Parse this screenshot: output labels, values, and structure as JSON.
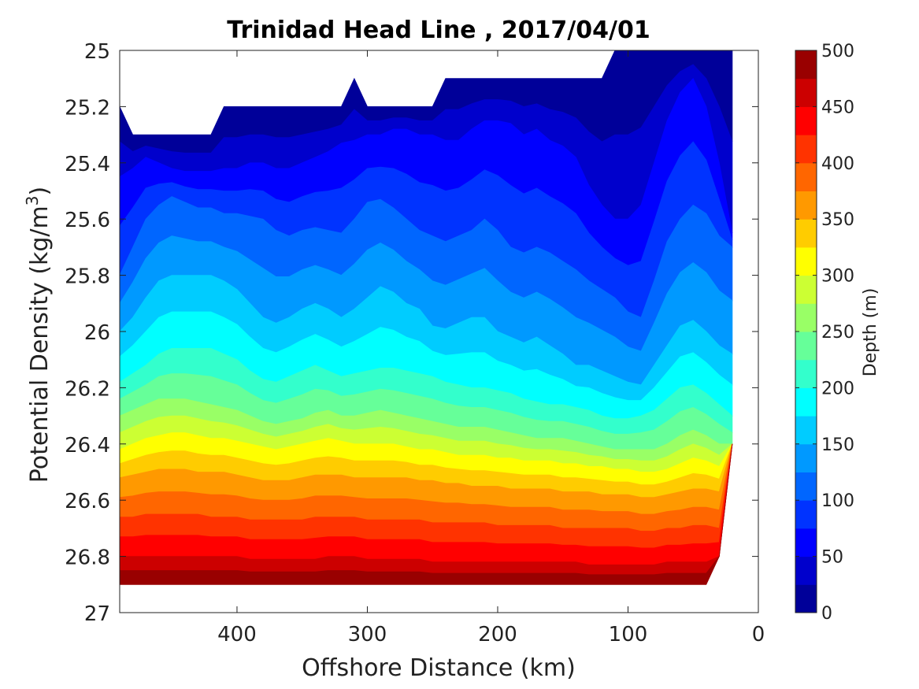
{
  "chart_data": {
    "type": "heatmap",
    "subtype": "filled-contour",
    "title": "Trinidad Head Line , 2017/04/01",
    "xlabel": "Offshore Distance (km)",
    "ylabel": "Potential Density (kg/m",
    "ylabel_superscript": "3",
    "ylabel_suffix": ")",
    "x_reversed": true,
    "y_reversed": true,
    "xlim": [
      490,
      0
    ],
    "ylim": [
      25,
      27
    ],
    "xticks": [
      400,
      300,
      200,
      100,
      0
    ],
    "yticks": [
      25,
      25.2,
      25.4,
      25.6,
      25.8,
      26,
      26.2,
      26.4,
      26.6,
      26.8,
      27
    ],
    "ytick_labels": [
      "25",
      "25.2",
      "25.4",
      "25.6",
      "25.8",
      "26",
      "26.2",
      "26.4",
      "26.6",
      "26.8",
      "27"
    ],
    "xtick_labels": [
      "400",
      "300",
      "200",
      "100",
      "0"
    ],
    "colormap": "jet",
    "colorbar": {
      "label": "Depth (m)",
      "min": 0,
      "max": 500,
      "levels": 20,
      "ticks": [
        "0",
        "50",
        "100",
        "150",
        "200",
        "250",
        "300",
        "350",
        "400",
        "450",
        "500"
      ],
      "tick_values": [
        0,
        50,
        100,
        150,
        200,
        250,
        300,
        350,
        400,
        450,
        500
      ]
    },
    "x": [
      490,
      480,
      470,
      460,
      450,
      440,
      430,
      420,
      410,
      400,
      390,
      380,
      370,
      360,
      350,
      340,
      330,
      320,
      310,
      300,
      290,
      280,
      270,
      260,
      250,
      240,
      230,
      220,
      210,
      200,
      190,
      180,
      170,
      160,
      150,
      140,
      130,
      120,
      110,
      100,
      90,
      80,
      70,
      60,
      50,
      40,
      30,
      20
    ],
    "top_density": [
      25.2,
      25.3,
      25.3,
      25.3,
      25.3,
      25.3,
      25.3,
      25.3,
      25.2,
      25.2,
      25.2,
      25.2,
      25.2,
      25.2,
      25.2,
      25.2,
      25.2,
      25.2,
      25.1,
      25.2,
      25.2,
      25.2,
      25.2,
      25.2,
      25.2,
      25.1,
      25.1,
      25.1,
      25.1,
      25.1,
      25.1,
      25.1,
      25.1,
      25.1,
      25.1,
      25.1,
      25.1,
      25.1,
      25.0,
      25.0,
      25.0,
      25.0,
      25.0,
      25.0,
      25.0,
      25.0,
      25.0,
      25.0
    ],
    "bottom_density": [
      26.9,
      26.9,
      26.9,
      26.9,
      26.9,
      26.9,
      26.9,
      26.9,
      26.9,
      26.9,
      26.9,
      26.9,
      26.9,
      26.9,
      26.9,
      26.9,
      26.9,
      26.9,
      26.9,
      26.9,
      26.9,
      26.9,
      26.9,
      26.9,
      26.9,
      26.9,
      26.9,
      26.9,
      26.9,
      26.9,
      26.9,
      26.9,
      26.9,
      26.9,
      26.9,
      26.9,
      26.9,
      26.9,
      26.9,
      26.9,
      26.9,
      26.9,
      26.9,
      26.9,
      26.9,
      26.9,
      26.8,
      26.4
    ],
    "depth_isolines": {
      "50": [
        25.45,
        25.42,
        25.38,
        25.4,
        25.42,
        25.43,
        25.43,
        25.43,
        25.42,
        25.42,
        25.4,
        25.4,
        25.42,
        25.42,
        25.4,
        25.38,
        25.36,
        25.33,
        25.32,
        25.3,
        25.3,
        25.28,
        25.28,
        25.3,
        25.3,
        25.32,
        25.32,
        25.28,
        25.25,
        25.25,
        25.26,
        25.3,
        25.28,
        25.32,
        25.34,
        25.38,
        25.48,
        25.55,
        25.6,
        25.6,
        25.55,
        25.4,
        25.25,
        25.15,
        25.1,
        25.2,
        25.4,
        25.65
      ],
      "100": [
        25.8,
        25.7,
        25.6,
        25.55,
        25.52,
        25.54,
        25.56,
        25.56,
        25.58,
        25.58,
        25.59,
        25.6,
        25.64,
        25.66,
        25.64,
        25.63,
        25.64,
        25.65,
        25.6,
        25.54,
        25.53,
        25.56,
        25.6,
        25.64,
        25.66,
        25.68,
        25.66,
        25.64,
        25.6,
        25.64,
        25.7,
        25.72,
        25.7,
        25.72,
        25.75,
        25.78,
        25.82,
        25.85,
        25.88,
        25.93,
        25.95,
        25.82,
        25.68,
        25.6,
        25.55,
        25.58,
        25.66,
        25.7
      ],
      "150": [
        26.0,
        25.95,
        25.88,
        25.82,
        25.8,
        25.8,
        25.8,
        25.8,
        25.82,
        25.85,
        25.9,
        25.95,
        25.97,
        25.95,
        25.92,
        25.9,
        25.92,
        25.95,
        25.92,
        25.88,
        25.84,
        25.86,
        25.9,
        25.92,
        25.98,
        25.99,
        25.97,
        25.95,
        25.95,
        26.0,
        26.02,
        26.04,
        26.02,
        26.05,
        26.08,
        26.12,
        26.12,
        26.14,
        26.16,
        26.18,
        26.19,
        26.12,
        26.05,
        25.98,
        25.96,
        26.0,
        26.05,
        26.08
      ],
      "200": [
        26.18,
        26.15,
        26.12,
        26.08,
        26.06,
        26.06,
        26.06,
        26.06,
        26.08,
        26.1,
        26.14,
        26.17,
        26.18,
        26.16,
        26.14,
        26.12,
        26.14,
        26.16,
        26.15,
        26.14,
        26.13,
        26.13,
        26.14,
        26.15,
        26.16,
        26.18,
        26.19,
        26.2,
        26.2,
        26.21,
        26.22,
        26.24,
        26.25,
        26.26,
        26.26,
        26.27,
        26.28,
        26.3,
        26.31,
        26.31,
        26.3,
        26.28,
        26.24,
        26.2,
        26.19,
        26.22,
        26.26,
        26.3
      ],
      "250": [
        26.3,
        26.28,
        26.26,
        26.24,
        26.24,
        26.24,
        26.25,
        26.26,
        26.27,
        26.28,
        26.3,
        26.32,
        26.33,
        26.32,
        26.31,
        26.29,
        26.28,
        26.3,
        26.3,
        26.29,
        26.28,
        26.29,
        26.3,
        26.31,
        26.32,
        26.33,
        26.34,
        26.34,
        26.34,
        26.35,
        26.36,
        26.37,
        26.38,
        26.38,
        26.38,
        26.39,
        26.4,
        26.41,
        26.42,
        26.42,
        26.42,
        26.42,
        26.4,
        26.37,
        26.35,
        26.37,
        26.4,
        26.42
      ],
      "300": [
        26.42,
        26.4,
        26.38,
        26.37,
        26.36,
        26.36,
        26.37,
        26.38,
        26.38,
        26.39,
        26.4,
        26.41,
        26.42,
        26.41,
        26.4,
        26.39,
        26.38,
        26.39,
        26.4,
        26.4,
        26.4,
        26.4,
        26.41,
        26.42,
        26.42,
        26.43,
        26.44,
        26.44,
        26.44,
        26.45,
        26.45,
        26.46,
        26.46,
        26.46,
        26.47,
        26.47,
        26.48,
        26.48,
        26.49,
        26.49,
        26.5,
        26.5,
        26.49,
        26.47,
        26.45,
        26.46,
        26.48,
        26.45
      ],
      "350": [
        26.52,
        26.51,
        26.5,
        26.49,
        26.49,
        26.49,
        26.5,
        26.5,
        26.5,
        26.51,
        26.52,
        26.53,
        26.53,
        26.53,
        26.52,
        26.51,
        26.51,
        26.51,
        26.52,
        26.52,
        26.52,
        26.52,
        26.52,
        26.53,
        26.53,
        26.54,
        26.54,
        26.55,
        26.55,
        26.55,
        26.56,
        26.56,
        26.56,
        26.56,
        26.57,
        26.57,
        26.57,
        26.58,
        26.58,
        26.58,
        26.59,
        26.59,
        26.58,
        26.57,
        26.56,
        26.56,
        26.57,
        26.55
      ],
      "400": [
        26.66,
        26.66,
        26.65,
        26.65,
        26.65,
        26.65,
        26.65,
        26.66,
        26.66,
        26.66,
        26.67,
        26.67,
        26.67,
        26.67,
        26.67,
        26.66,
        26.66,
        26.66,
        26.66,
        26.67,
        26.67,
        26.67,
        26.67,
        26.67,
        26.68,
        26.68,
        26.68,
        26.68,
        26.68,
        26.69,
        26.69,
        26.69,
        26.69,
        26.69,
        26.7,
        26.7,
        26.7,
        26.7,
        26.7,
        26.7,
        26.71,
        26.71,
        26.7,
        26.7,
        26.69,
        26.69,
        26.7,
        26.68
      ],
      "450": [
        26.8,
        26.8,
        26.8,
        26.8,
        26.8,
        26.8,
        26.8,
        26.8,
        26.8,
        26.8,
        26.81,
        26.81,
        26.81,
        26.81,
        26.81,
        26.81,
        26.8,
        26.8,
        26.8,
        26.81,
        26.81,
        26.81,
        26.81,
        26.81,
        26.82,
        26.82,
        26.82,
        26.82,
        26.82,
        26.82,
        26.82,
        26.82,
        26.82,
        26.82,
        26.82,
        26.82,
        26.83,
        26.83,
        26.83,
        26.83,
        26.83,
        26.83,
        26.82,
        26.82,
        26.82,
        26.82,
        26.8,
        26.78
      ],
      "500": [
        26.9,
        26.9,
        26.9,
        26.9,
        26.9,
        26.9,
        26.9,
        26.9,
        26.9,
        26.9,
        26.9,
        26.9,
        26.9,
        26.9,
        26.9,
        26.9,
        26.9,
        26.9,
        26.9,
        26.9,
        26.9,
        26.9,
        26.9,
        26.9,
        26.9,
        26.9,
        26.9,
        26.9,
        26.9,
        26.9,
        26.9,
        26.9,
        26.9,
        26.9,
        26.9,
        26.9,
        26.9,
        26.9,
        26.9,
        26.9,
        26.9,
        26.9,
        26.9,
        26.9,
        26.9,
        26.9,
        26.8,
        26.4
      ]
    }
  }
}
